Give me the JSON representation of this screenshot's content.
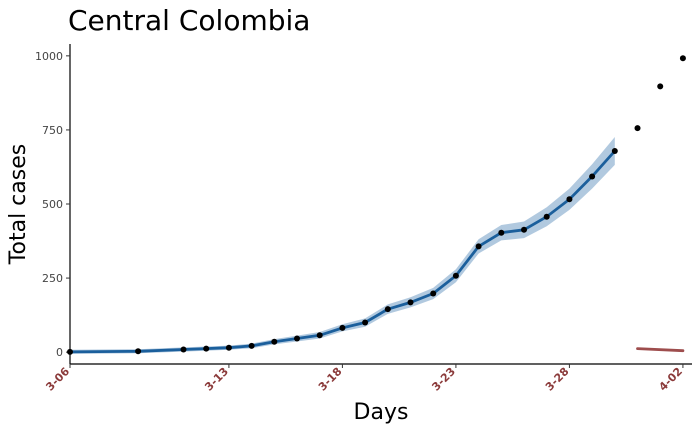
{
  "chart_data": {
    "type": "line",
    "title": "Central Colombia",
    "xlabel": "Days",
    "ylabel": "Total cases",
    "ylim": [
      -40,
      1040
    ],
    "yticks": [
      0,
      250,
      500,
      750,
      1000
    ],
    "xticks": [
      {
        "day": 0,
        "label": "3-06"
      },
      {
        "day": 7,
        "label": "3-13"
      },
      {
        "day": 12,
        "label": "3-18"
      },
      {
        "day": 17,
        "label": "3-23"
      },
      {
        "day": 22,
        "label": "3-28"
      },
      {
        "day": 27,
        "label": "4-02"
      }
    ],
    "xlim": [
      0,
      27.4
    ],
    "grid": false,
    "colors": {
      "fit_line": "#1b5f9c",
      "ribbon": "#a9c3dc",
      "points": "#000000",
      "forecast": "#9e4d4d",
      "tick_labels": "#8b3a3a"
    },
    "series": [
      {
        "name": "observed",
        "x": [
          0,
          3,
          5,
          6,
          7,
          8,
          9,
          10,
          11,
          12,
          13,
          14,
          15,
          16,
          17,
          18,
          19,
          20,
          21,
          22,
          23,
          24,
          25,
          26,
          27
        ],
        "values": [
          1,
          3,
          9,
          12,
          15,
          21,
          35,
          46,
          57,
          82,
          100,
          145,
          168,
          198,
          258,
          357,
          403,
          413,
          457,
          516,
          593,
          679,
          756,
          897,
          992
        ]
      },
      {
        "name": "fit",
        "x": [
          0,
          3,
          5,
          6,
          7,
          8,
          9,
          10,
          11,
          12,
          13,
          14,
          15,
          16,
          17,
          18,
          19,
          20,
          21,
          22,
          23,
          24
        ],
        "values": [
          1,
          3,
          9,
          12,
          15,
          21,
          35,
          46,
          57,
          82,
          100,
          145,
          168,
          198,
          258,
          357,
          403,
          413,
          457,
          516,
          593,
          679
        ],
        "lower": [
          -6,
          -4,
          2,
          5,
          8,
          13,
          26,
          36,
          46,
          70,
          86,
          129,
          151,
          179,
          236,
          333,
          377,
          385,
          425,
          480,
          552,
          632
        ],
        "upper": [
          8,
          10,
          16,
          19,
          22,
          29,
          44,
          56,
          68,
          94,
          114,
          161,
          185,
          217,
          280,
          381,
          429,
          441,
          489,
          552,
          634,
          726
        ]
      },
      {
        "name": "forecast",
        "x": [
          25,
          27
        ],
        "values": [
          12,
          5
        ]
      }
    ]
  }
}
